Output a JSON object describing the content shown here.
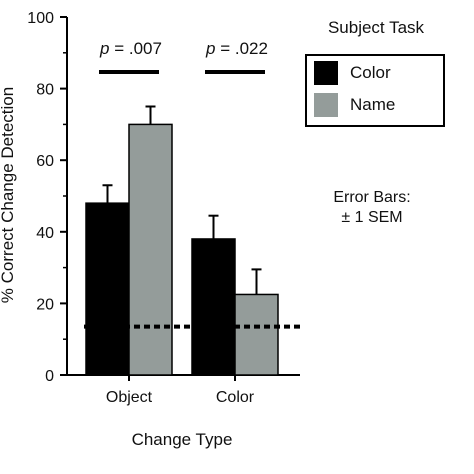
{
  "chart_data": {
    "type": "bar",
    "categories": [
      "Object",
      "Color"
    ],
    "series": [
      {
        "name": "Color",
        "color": "#000000",
        "values": [
          48,
          38
        ],
        "errors": [
          5,
          6.5
        ]
      },
      {
        "name": "Name",
        "color": "#949c9a",
        "values": [
          70,
          22.5
        ],
        "errors": [
          5,
          7
        ]
      }
    ],
    "xlabel": "Change Type",
    "ylabel": "% Correct Change Detection",
    "ylim": [
      0,
      100
    ],
    "yticks": [
      0,
      20,
      40,
      60,
      80,
      100
    ],
    "legend": {
      "title": "Subject Task",
      "placement": "top-right"
    },
    "chance_line": {
      "value": 13.5,
      "style": "dotted"
    },
    "annotations": [
      {
        "text": "p = .007",
        "category": "Object"
      },
      {
        "text": "p = .022",
        "category": "Color"
      }
    ],
    "note_line1": "Error Bars:",
    "note_line2": "± 1 SEM"
  }
}
